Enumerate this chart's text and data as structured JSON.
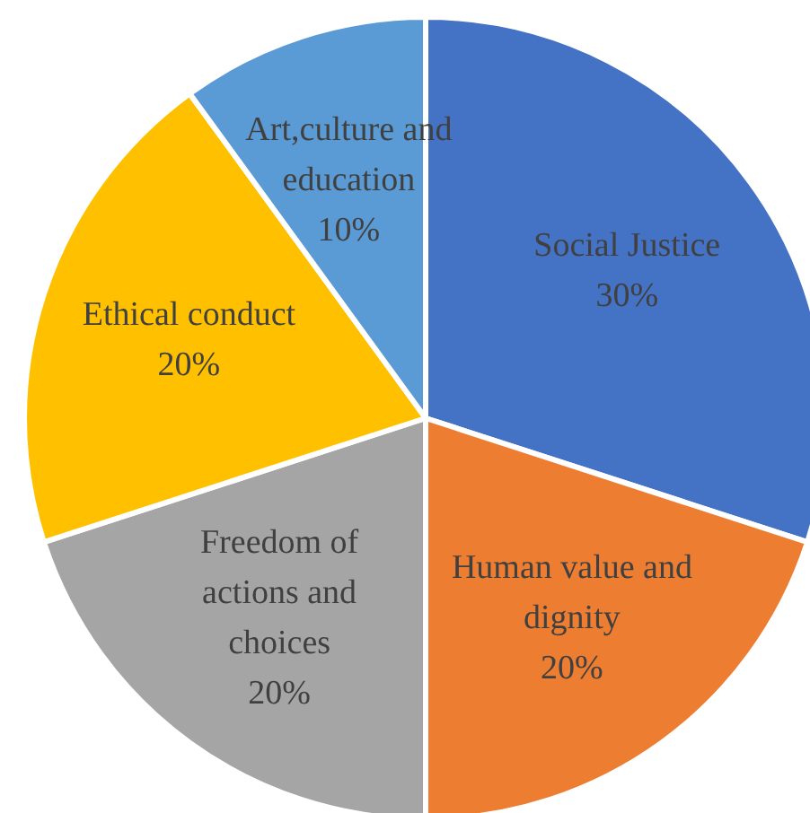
{
  "chart_data": {
    "type": "pie",
    "categories": [
      "Social Justice",
      "Human value and dignity",
      "Freedom of actions and choices",
      "Ethical conduct",
      "Art,culture and education"
    ],
    "values": [
      30,
      20,
      20,
      20,
      10
    ],
    "colors": [
      "#4472c4",
      "#ed7d31",
      "#a5a5a5",
      "#ffc000",
      "#5b9bd5"
    ],
    "value_labels": [
      "30%",
      "20%",
      "20%",
      "20%",
      "10%"
    ],
    "legend": false
  }
}
